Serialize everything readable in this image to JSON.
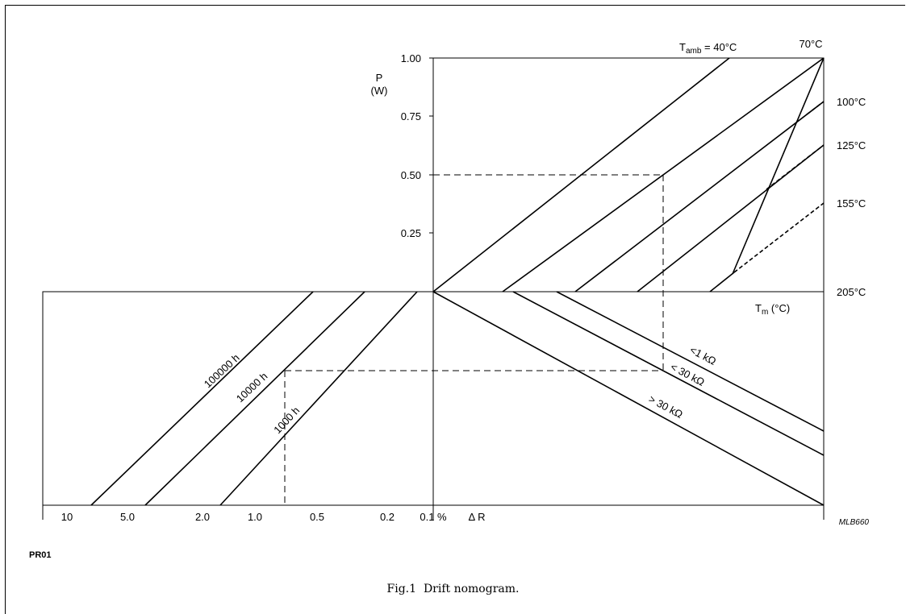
{
  "document_id": "PR01",
  "figure": {
    "number": "Fig.1",
    "caption": "Drift nomogram."
  },
  "chart_data": {
    "type": "line",
    "code": "MLB660",
    "upper": {
      "y_axis": {
        "label": "P",
        "unit": "(W)",
        "ticks": [
          "1.00",
          "0.75",
          "0.50",
          "0.25"
        ],
        "values": [
          1.0,
          0.75,
          0.5,
          0.25
        ]
      },
      "x_label": "T",
      "x_sub": "m",
      "x_unit": "(°C)",
      "ambient_prefix": "T",
      "ambient_sub": "amb",
      "ambient_suffix": " = ",
      "ambient_lines": [
        {
          "label": "40",
          "unit": "°C"
        },
        {
          "label": "70",
          "unit": "°C"
        },
        {
          "label": "100",
          "unit": "°C"
        },
        {
          "label": "125",
          "unit": "°C"
        },
        {
          "label": "155",
          "unit": "°C"
        }
      ],
      "max_temperature": {
        "label": "205",
        "unit": "°C"
      }
    },
    "lower": {
      "x_axis": {
        "ticks": [
          "10",
          "5.0",
          "2.0",
          "1.0",
          "0.5",
          "0.2",
          "0.1 %",
          "Δ R"
        ]
      },
      "time_lines": [
        "100000 h",
        "10000 h",
        "1000 h"
      ],
      "resistance_lines": [
        "<1 kΩ",
        "< 30 kΩ",
        "> 30 kΩ"
      ]
    },
    "example": {
      "power_W": 0.5,
      "time": "1000 h",
      "drift_percent": 0.75
    },
    "grid": false
  }
}
